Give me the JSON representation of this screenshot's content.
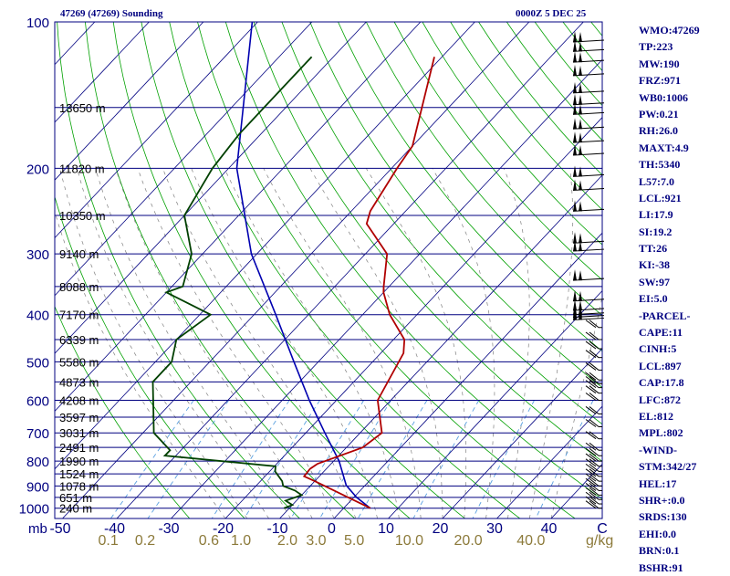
{
  "header": {
    "station": "47269 (47269) Sounding",
    "time": "0000Z  5 DEC 25"
  },
  "indices": [
    "WMO:47269",
    "TP:223",
    "MW:190",
    "FRZ:971",
    "WB0:1006",
    "PW:0.21",
    "RH:26.0",
    "MAXT:4.9",
    "TH:5340",
    "L57:7.0",
    "LCL:921",
    "LI:17.9",
    "SI:19.2",
    "TT:26",
    "KI:-38",
    "SW:97",
    "EI:5.0",
    "-PARCEL-",
    "CAPE:11",
    "CINH:5",
    "LCL:897",
    "CAP:17.8",
    "LFC:872",
    "EL:812",
    "MPL:802",
    "-WIND-",
    "STM:342/27",
    "HEL:17",
    "SHR+:0.0",
    "SRDS:130",
    "EHI:0.0",
    "BRN:0.1",
    "BSHR:91"
  ],
  "colors": {
    "isobar": "#000080",
    "dry_adiabat": "#00a000",
    "moist_adiabat": "#808080",
    "mixing_ratio": "#5aa0e0",
    "skewed_isotherm": "#000080",
    "temperature": "#b00000",
    "dewpoint": "#004000",
    "parcel": "#0000b0",
    "wind": "#000000"
  },
  "chart_data": {
    "type": "skew-t",
    "pressure_axis": {
      "ticks": [
        100,
        200,
        300,
        400,
        500,
        600,
        700,
        800,
        900,
        1000
      ],
      "unit_label": "mb",
      "scale": "log"
    },
    "temperature_axis": {
      "ticks": [
        -50,
        -40,
        -30,
        -20,
        -10,
        0,
        10,
        20,
        30,
        40
      ],
      "end_label": "C"
    },
    "mixing_ratio_axis": {
      "ticks": [
        "0.1",
        "0.2",
        "0.6",
        "1.0",
        "2.0",
        "3.0",
        "5.0",
        "10.0",
        "20.0",
        "40.0"
      ],
      "unit_label": "g/kg"
    },
    "height_labels": [
      {
        "p": 150,
        "label": "13650 m"
      },
      {
        "p": 200,
        "label": "11820 m"
      },
      {
        "p": 250,
        "label": "10350 m"
      },
      {
        "p": 300,
        "label": "9140 m"
      },
      {
        "p": 350,
        "label": "8088 m"
      },
      {
        "p": 400,
        "label": "7170 m"
      },
      {
        "p": 450,
        "label": "6339 m"
      },
      {
        "p": 500,
        "label": "5580 m"
      },
      {
        "p": 550,
        "label": "4873 m"
      },
      {
        "p": 600,
        "label": "4208 m"
      },
      {
        "p": 650,
        "label": "3597 m"
      },
      {
        "p": 700,
        "label": "3031 m"
      },
      {
        "p": 750,
        "label": "2491 m"
      },
      {
        "p": 800,
        "label": "1990 m"
      },
      {
        "p": 850,
        "label": "1524 m"
      },
      {
        "p": 900,
        "label": "1078 m"
      },
      {
        "p": 950,
        "label": "651 m"
      },
      {
        "p": 1000,
        "label": "240 m"
      }
    ],
    "temperature": [
      [
        118,
        -61.4
      ],
      [
        180,
        -50
      ],
      [
        200,
        -49
      ],
      [
        245,
        -46.5
      ],
      [
        260,
        -45
      ],
      [
        300,
        -36
      ],
      [
        350,
        -31
      ],
      [
        360,
        -30
      ],
      [
        400,
        -25
      ],
      [
        450,
        -18
      ],
      [
        480,
        -15.8
      ],
      [
        600,
        -12.4
      ],
      [
        700,
        -6
      ],
      [
        750,
        -7
      ],
      [
        810,
        -12.5
      ],
      [
        830,
        -13
      ],
      [
        860,
        -12.8
      ],
      [
        880,
        -10
      ],
      [
        1000,
        4.9
      ]
    ],
    "dewpoint": [
      [
        118,
        -84
      ],
      [
        150,
        -84
      ],
      [
        170,
        -84
      ],
      [
        200,
        -83
      ],
      [
        250,
        -80
      ],
      [
        300,
        -72
      ],
      [
        350,
        -68
      ],
      [
        360,
        -70
      ],
      [
        400,
        -58
      ],
      [
        450,
        -60
      ],
      [
        500,
        -57
      ],
      [
        550,
        -57
      ],
      [
        700,
        -48
      ],
      [
        760,
        -42
      ],
      [
        780,
        -42
      ],
      [
        820,
        -19.8
      ],
      [
        840,
        -19
      ],
      [
        880,
        -16
      ],
      [
        900,
        -15
      ],
      [
        920,
        -12
      ],
      [
        940,
        -10
      ],
      [
        965,
        -12
      ],
      [
        985,
        -10
      ],
      [
        1000,
        -11
      ]
    ],
    "parcel": [
      [
        100,
        -101
      ],
      [
        200,
        -78.5
      ],
      [
        300,
        -61
      ],
      [
        400,
        -46
      ],
      [
        500,
        -34.5
      ],
      [
        600,
        -25
      ],
      [
        700,
        -16.5
      ],
      [
        800,
        -9
      ],
      [
        897,
        -3.5
      ],
      [
        950,
        0.5
      ],
      [
        1000,
        4.9
      ]
    ],
    "wind_barb_pressures": [
      110,
      115,
      121,
      129,
      140,
      148,
      155,
      166,
      177,
      188,
      208,
      222,
      245,
      285,
      296,
      340,
      375,
      392,
      400,
      405,
      410,
      425,
      450,
      470,
      490,
      520,
      545,
      555,
      565,
      580,
      600,
      640,
      680,
      720,
      760,
      780,
      800,
      820,
      840,
      860,
      880,
      900,
      920,
      940,
      960,
      980,
      1000
    ],
    "wind_barb_label": "C"
  }
}
